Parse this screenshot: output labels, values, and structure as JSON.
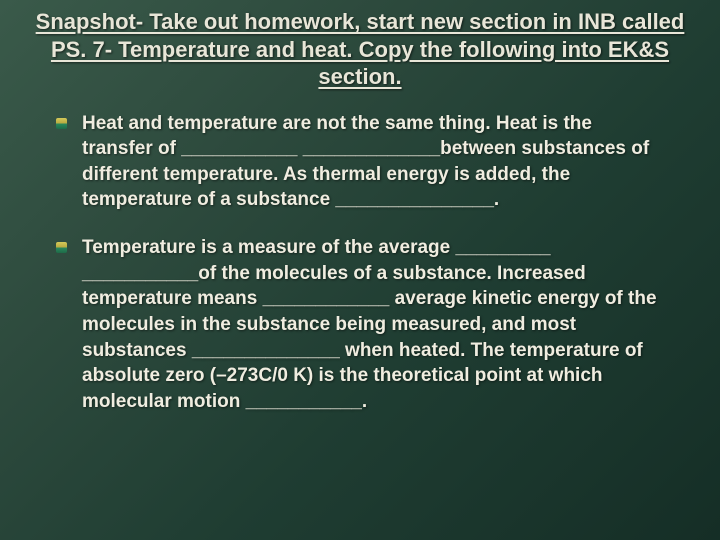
{
  "slide": {
    "title": "Snapshot- Take out homework, start new section in INB called PS. 7- Temperature and heat. Copy the following into EK&S section.",
    "bullets": [
      "Heat and temperature are not the same thing. Heat is the transfer of ___________  _____________between substances of different temperature. As thermal energy is added, the temperature of a substance _______________.",
      "Temperature is a measure of the average _________ ___________of the molecules of a substance. Increased temperature means ____________ average kinetic energy of the molecules in the substance being measured, and most substances ______________ when heated. The temperature of absolute zero (–273C/0 K) is the theoretical point at which molecular motion ___________."
    ]
  },
  "styling": {
    "slide_width": 720,
    "slide_height": 540,
    "background_gradient": [
      "#3a5a4a",
      "#2d4a3d",
      "#1f3d32",
      "#152e26"
    ],
    "title_color": "#e8e6d8",
    "title_fontsize": 22,
    "title_fontweight": "bold",
    "title_underline": true,
    "body_color": "#f0ede0",
    "body_fontsize": 19,
    "body_fontweight": "bold",
    "bullet_icon_colors": [
      "#d4c95a",
      "#2a8a5e"
    ],
    "font_family": "Trebuchet MS"
  }
}
